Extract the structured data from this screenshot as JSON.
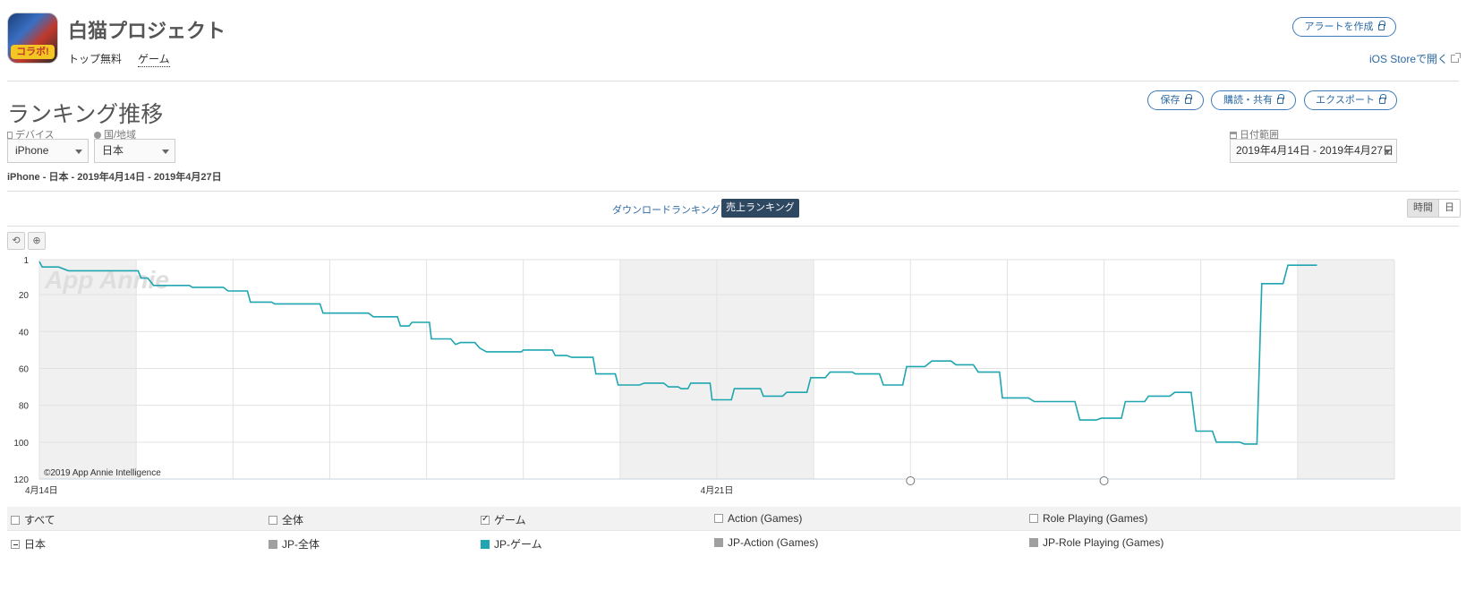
{
  "app": {
    "title": "白猫プロジェクト",
    "icon_badge": "コラボ!",
    "tag_top_free": "トップ無料",
    "tag_category": "ゲーム"
  },
  "header": {
    "create_alert": "アラートを作成",
    "open_ios_store": "iOS Storeで開く"
  },
  "section": {
    "title": "ランキング推移",
    "save": "保存",
    "subscribe_share": "購読・共有",
    "export": "エクスポート"
  },
  "filters": {
    "device_label": "デバイス",
    "device_value": "iPhone",
    "country_label": "国/地域",
    "country_value": "日本",
    "date_label": "日付範囲",
    "date_value": "2019年4月14日 - 2019年4月27日"
  },
  "summary": "iPhone - 日本 - 2019年4月14日 - 2019年4月27日",
  "tabs": {
    "download_ranking": "ダウンロードランキング",
    "sales_ranking": "売上ランキング"
  },
  "granularity": {
    "hour": "時間",
    "day": "日"
  },
  "tools": {
    "reset_icon": "undo-icon",
    "zoom_icon": "zoom-icon"
  },
  "chart_data": {
    "type": "line",
    "watermark": "App Annie",
    "copyright": "©2019 App Annie Intelligence",
    "y_axis": {
      "reversed": true,
      "ticks": [
        1,
        20,
        40,
        60,
        80,
        100,
        120
      ],
      "range": [
        1,
        120
      ]
    },
    "x_axis": {
      "start": "4月14日",
      "end": "4月27日",
      "labels": [
        {
          "day": 0,
          "text": "4月14日"
        },
        {
          "day": 7,
          "text": "4月21日"
        }
      ]
    },
    "shaded_day_ranges": [
      [
        0,
        1
      ],
      [
        6,
        8
      ],
      [
        13,
        14
      ]
    ],
    "series": [
      {
        "color": "#1fa6b0",
        "points": [
          [
            0.0,
            2
          ],
          [
            0.03,
            5
          ],
          [
            0.2,
            5
          ],
          [
            0.3,
            7
          ],
          [
            0.5,
            7
          ],
          [
            0.75,
            7
          ],
          [
            1.02,
            7
          ],
          [
            1.05,
            11
          ],
          [
            1.12,
            11
          ],
          [
            1.18,
            15
          ],
          [
            1.55,
            15
          ],
          [
            1.58,
            16
          ],
          [
            1.9,
            16
          ],
          [
            1.95,
            18
          ],
          [
            2.15,
            18
          ],
          [
            2.18,
            24
          ],
          [
            2.4,
            24
          ],
          [
            2.43,
            25
          ],
          [
            2.9,
            25
          ],
          [
            2.93,
            30
          ],
          [
            3.4,
            30
          ],
          [
            3.45,
            32
          ],
          [
            3.7,
            32
          ],
          [
            3.73,
            37
          ],
          [
            3.82,
            37
          ],
          [
            3.85,
            35
          ],
          [
            4.03,
            35
          ],
          [
            4.05,
            44
          ],
          [
            4.25,
            44
          ],
          [
            4.3,
            47
          ],
          [
            4.35,
            46
          ],
          [
            4.5,
            46
          ],
          [
            4.55,
            49
          ],
          [
            4.62,
            51
          ],
          [
            4.98,
            51
          ],
          [
            5.0,
            50
          ],
          [
            5.3,
            50
          ],
          [
            5.33,
            53
          ],
          [
            5.45,
            53
          ],
          [
            5.5,
            54
          ],
          [
            5.72,
            54
          ],
          [
            5.75,
            63
          ],
          [
            5.95,
            63
          ],
          [
            5.98,
            69
          ],
          [
            6.2,
            69
          ],
          [
            6.25,
            68
          ],
          [
            6.45,
            68
          ],
          [
            6.5,
            70
          ],
          [
            6.6,
            70
          ],
          [
            6.63,
            71
          ],
          [
            6.7,
            71
          ],
          [
            6.73,
            68
          ],
          [
            6.93,
            68
          ],
          [
            6.95,
            77
          ],
          [
            7.15,
            77
          ],
          [
            7.18,
            71
          ],
          [
            7.45,
            71
          ],
          [
            7.48,
            75
          ],
          [
            7.68,
            75
          ],
          [
            7.72,
            73
          ],
          [
            7.93,
            73
          ],
          [
            7.97,
            65
          ],
          [
            8.12,
            65
          ],
          [
            8.17,
            62
          ],
          [
            8.4,
            62
          ],
          [
            8.43,
            63
          ],
          [
            8.68,
            63
          ],
          [
            8.72,
            69
          ],
          [
            8.92,
            69
          ],
          [
            8.96,
            59
          ],
          [
            9.15,
            59
          ],
          [
            9.22,
            56
          ],
          [
            9.42,
            56
          ],
          [
            9.47,
            58
          ],
          [
            9.65,
            58
          ],
          [
            9.7,
            62
          ],
          [
            9.92,
            62
          ],
          [
            9.95,
            76
          ],
          [
            10.22,
            76
          ],
          [
            10.28,
            78
          ],
          [
            10.7,
            78
          ],
          [
            10.75,
            88
          ],
          [
            10.92,
            88
          ],
          [
            10.97,
            87
          ],
          [
            11.18,
            87
          ],
          [
            11.22,
            78
          ],
          [
            11.42,
            78
          ],
          [
            11.46,
            75
          ],
          [
            11.68,
            75
          ],
          [
            11.73,
            73
          ],
          [
            11.9,
            73
          ],
          [
            11.95,
            94
          ],
          [
            12.12,
            94
          ],
          [
            12.16,
            100
          ],
          [
            12.4,
            100
          ],
          [
            12.45,
            101
          ],
          [
            12.58,
            101
          ],
          [
            12.63,
            14
          ],
          [
            12.85,
            14
          ],
          [
            12.9,
            4
          ],
          [
            13.2,
            4
          ]
        ]
      }
    ],
    "markers": [
      {
        "day": 9.0
      },
      {
        "day": 11.0
      }
    ]
  },
  "legend": {
    "row1": [
      {
        "label": "すべて",
        "checked": false
      },
      {
        "label": "全体",
        "checked": false
      },
      {
        "label": "ゲーム",
        "checked": true
      },
      {
        "label": "Action (Games)",
        "checked": false
      },
      {
        "label": "Role Playing (Games)",
        "checked": false
      }
    ],
    "country": "日本",
    "row2": [
      {
        "label": "JP-全体",
        "color": "#a0a0a0"
      },
      {
        "label": "JP-ゲーム",
        "color": "#1fa6b0"
      },
      {
        "label": "JP-Action (Games)",
        "color": "#a0a0a0"
      },
      {
        "label": "JP-Role Playing (Games)",
        "color": "#a0a0a0"
      }
    ]
  }
}
